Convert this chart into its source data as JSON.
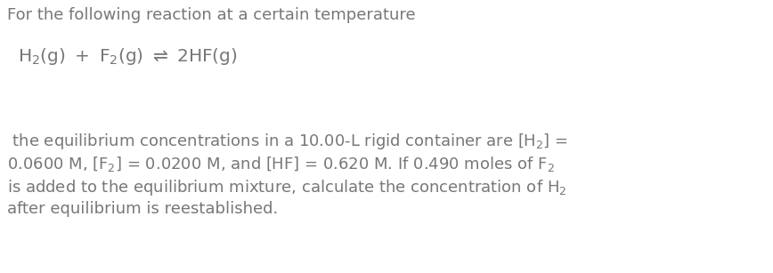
{
  "background_color": "#ffffff",
  "text_color": "#777777",
  "line1": "For the following reaction at a certain temperature",
  "equation_fontsize": 14.5,
  "body_fontsize": 13.0,
  "figsize": [
    8.68,
    3.07
  ],
  "dpi": 100,
  "body_lines": [
    " the equilibrium concentrations in a 10.00-L rigid container are [H$_2$] =",
    "0.0600 M, [F$_2$] = 0.0200 M, and [HF] = 0.620 M. If 0.490 moles of F$_2$",
    "is added to the equilibrium mixture, calculate the concentration of H$_2$",
    "after equilibrium is reestablished."
  ]
}
